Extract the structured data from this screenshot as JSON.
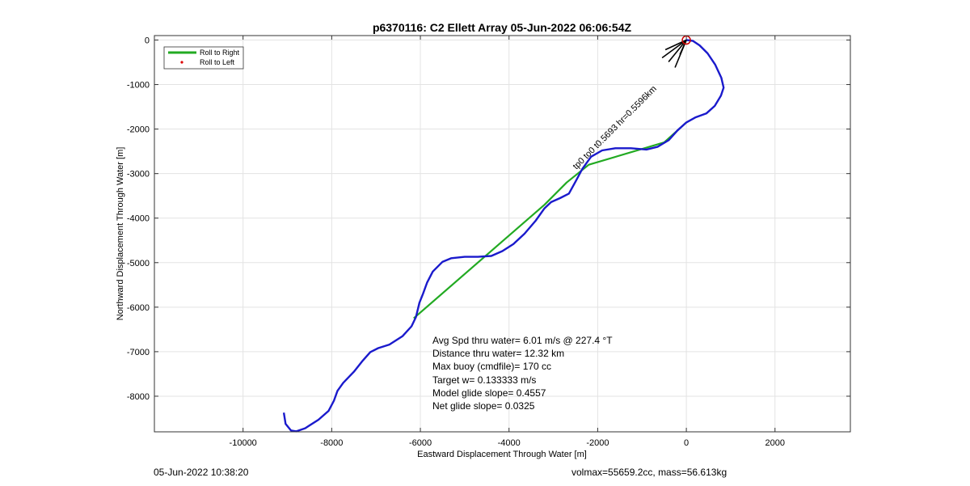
{
  "chart_data": {
    "type": "line",
    "title": "p6370116: C2 Ellett Array 05-Jun-2022 06:06:54Z",
    "xlabel": "Eastward Displacement Through Water [m]",
    "ylabel": "Northward Displacement Through Water [m]",
    "xlim": [
      -12000,
      3700
    ],
    "ylim": [
      -8800,
      100
    ],
    "xticks": [
      -10000,
      -8000,
      -6000,
      -4000,
      -2000,
      0,
      2000
    ],
    "yticks": [
      0,
      -1000,
      -2000,
      -3000,
      -4000,
      -5000,
      -6000,
      -7000,
      -8000
    ],
    "grid": true,
    "legend": {
      "placement": "top-left",
      "entries": [
        {
          "label": "Roll to Right",
          "color": "#22aa22",
          "style": "line"
        },
        {
          "label": "Roll to Left",
          "color": "#dd0000",
          "style": "dot"
        }
      ]
    },
    "series": [
      {
        "color": "#1a1acc",
        "points": [
          [
            -9080,
            -8370
          ],
          [
            -9040,
            -8620
          ],
          [
            -8920,
            -8770
          ],
          [
            -8800,
            -8790
          ],
          [
            -8600,
            -8720
          ],
          [
            -8300,
            -8530
          ],
          [
            -8070,
            -8330
          ],
          [
            -7950,
            -8100
          ],
          [
            -7870,
            -7880
          ],
          [
            -7740,
            -7700
          ],
          [
            -7500,
            -7450
          ],
          [
            -7300,
            -7200
          ],
          [
            -7130,
            -7010
          ],
          [
            -6950,
            -6920
          ],
          [
            -6700,
            -6840
          ],
          [
            -6400,
            -6650
          ],
          [
            -6200,
            -6430
          ],
          [
            -6100,
            -6220
          ],
          [
            -6020,
            -5900
          ],
          [
            -5940,
            -5700
          ],
          [
            -5850,
            -5450
          ],
          [
            -5720,
            -5200
          ],
          [
            -5500,
            -4980
          ],
          [
            -5300,
            -4900
          ],
          [
            -5000,
            -4870
          ],
          [
            -4700,
            -4870
          ],
          [
            -4400,
            -4850
          ],
          [
            -4150,
            -4740
          ],
          [
            -3900,
            -4580
          ],
          [
            -3650,
            -4350
          ],
          [
            -3400,
            -4060
          ],
          [
            -3200,
            -3780
          ],
          [
            -3050,
            -3640
          ],
          [
            -2850,
            -3550
          ],
          [
            -2650,
            -3450
          ],
          [
            -2500,
            -3180
          ],
          [
            -2350,
            -2900
          ],
          [
            -2150,
            -2620
          ],
          [
            -1900,
            -2480
          ],
          [
            -1600,
            -2430
          ],
          [
            -1250,
            -2430
          ],
          [
            -900,
            -2460
          ],
          [
            -650,
            -2400
          ],
          [
            -400,
            -2250
          ],
          [
            -200,
            -2030
          ],
          [
            0,
            -1850
          ],
          [
            200,
            -1740
          ],
          [
            450,
            -1650
          ],
          [
            640,
            -1480
          ],
          [
            780,
            -1250
          ],
          [
            840,
            -1070
          ],
          [
            790,
            -850
          ],
          [
            650,
            -550
          ],
          [
            480,
            -300
          ],
          [
            300,
            -120
          ],
          [
            150,
            -20
          ],
          [
            0,
            0
          ]
        ]
      },
      {
        "color": "#22aa22",
        "points": [
          [
            -6150,
            -6250
          ],
          [
            -3200,
            -3700
          ],
          [
            -2700,
            -3200
          ],
          [
            -2200,
            -2800
          ],
          [
            -500,
            -2300
          ],
          [
            0,
            -1850
          ]
        ]
      }
    ],
    "annotations": {
      "heading_text": "tp0 to0 t0.5693 hr=0.5596km",
      "start_marker_color": "#cc0000",
      "stats_lines": [
        "Avg Spd thru water=  6.01 m/s @ 227.4 °T",
        "Distance thru water= 12.32 km",
        "Max buoy (cmdfile)= 170 cc",
        "Target w= 0.133333 m/s",
        "Model glide slope= 0.4557",
        "Net glide slope= 0.0325"
      ]
    }
  },
  "footer": {
    "left": "05-Jun-2022 10:38:20",
    "right": "volmax=55659.2cc, mass=56.613kg"
  }
}
